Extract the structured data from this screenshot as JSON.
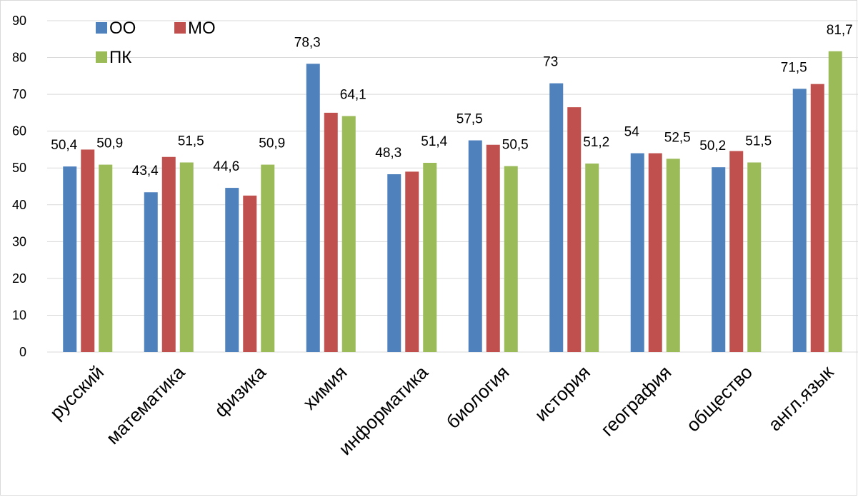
{
  "chart_data": {
    "type": "bar",
    "categories": [
      "русский",
      "математика",
      "физика",
      "химия",
      "информатика",
      "биология",
      "история",
      "география",
      "общество",
      "англ.язык"
    ],
    "series": [
      {
        "name": "ОО",
        "color": "#4F81BD",
        "values": [
          50.4,
          43.4,
          44.6,
          78.3,
          48.3,
          57.5,
          73,
          54,
          50.2,
          71.5
        ]
      },
      {
        "name": "МО",
        "color": "#C0504D",
        "values": [
          55,
          53,
          42.5,
          65,
          49,
          56.3,
          66.5,
          54,
          54.6,
          72.8
        ]
      },
      {
        "name": "ПК",
        "color": "#9BBB59",
        "values": [
          50.9,
          51.5,
          50.9,
          64.1,
          51.4,
          50.5,
          51.2,
          52.5,
          51.5,
          81.7
        ]
      }
    ],
    "data_labels": [
      [
        "50,4",
        "43,4",
        "44,6",
        "78,3",
        "48,3",
        "57,5",
        "73",
        "54",
        "50,2",
        "71,5"
      ],
      [
        "",
        "",
        "",
        "",
        "",
        "",
        "",
        "",
        "",
        ""
      ],
      [
        "50,9",
        "51,5",
        "50,9",
        "64,1",
        "51,4",
        "50,5",
        "51,2",
        "52,5",
        "51,5",
        "81,7"
      ]
    ],
    "yticks": [
      "0",
      "10",
      "20",
      "30",
      "40",
      "50",
      "60",
      "70",
      "80",
      "90"
    ],
    "ylim": [
      0,
      90
    ],
    "grid": true,
    "legend_position": "top-left",
    "title": "",
    "xlabel": "",
    "ylabel": ""
  }
}
